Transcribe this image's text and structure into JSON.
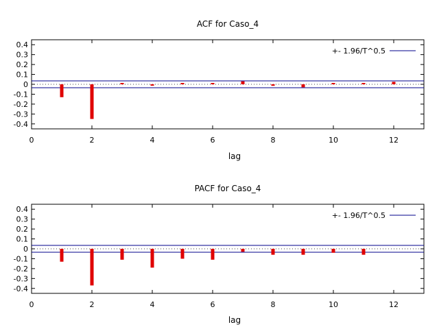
{
  "chart_data": [
    {
      "type": "bar",
      "title": "ACF for Caso_4",
      "xlabel": "lag",
      "ylabel": "",
      "xlim": [
        0,
        13
      ],
      "ylim": [
        -0.45,
        0.45
      ],
      "x_ticks": [
        "0",
        "2",
        "4",
        "6",
        "8",
        "10",
        "12"
      ],
      "y_ticks": [
        "0.4",
        "0.3",
        "0.2",
        "0.1",
        "0",
        "-0.1",
        "-0.2",
        "-0.3",
        "-0.4"
      ],
      "legend": {
        "label": "+- 1.96/T^0.5",
        "position": "top-right"
      },
      "band": 0.035,
      "bar_color": "#e00000",
      "band_color": "#00008b",
      "categories": [
        1,
        2,
        3,
        4,
        5,
        6,
        7,
        8,
        9,
        10,
        11,
        12
      ],
      "values": [
        -0.13,
        -0.35,
        0.01,
        -0.01,
        0.0,
        0.0,
        0.03,
        -0.015,
        -0.03,
        0.01,
        0.0,
        0.025
      ]
    },
    {
      "type": "bar",
      "title": "PACF for Caso_4",
      "xlabel": "lag",
      "ylabel": "",
      "xlim": [
        0,
        13
      ],
      "ylim": [
        -0.45,
        0.45
      ],
      "x_ticks": [
        "0",
        "2",
        "4",
        "6",
        "8",
        "10",
        "12"
      ],
      "y_ticks": [
        "0.4",
        "0.3",
        "0.2",
        "0.1",
        "0",
        "-0.1",
        "-0.2",
        "-0.3",
        "-0.4"
      ],
      "legend": {
        "label": "+- 1.96/T^0.5",
        "position": "top-right"
      },
      "band": 0.035,
      "bar_color": "#e00000",
      "band_color": "#00008b",
      "categories": [
        1,
        2,
        3,
        4,
        5,
        6,
        7,
        8,
        9,
        10,
        11
      ],
      "values": [
        -0.13,
        -0.37,
        -0.11,
        -0.19,
        -0.1,
        -0.11,
        -0.03,
        -0.06,
        -0.06,
        -0.04,
        -0.06
      ]
    }
  ]
}
